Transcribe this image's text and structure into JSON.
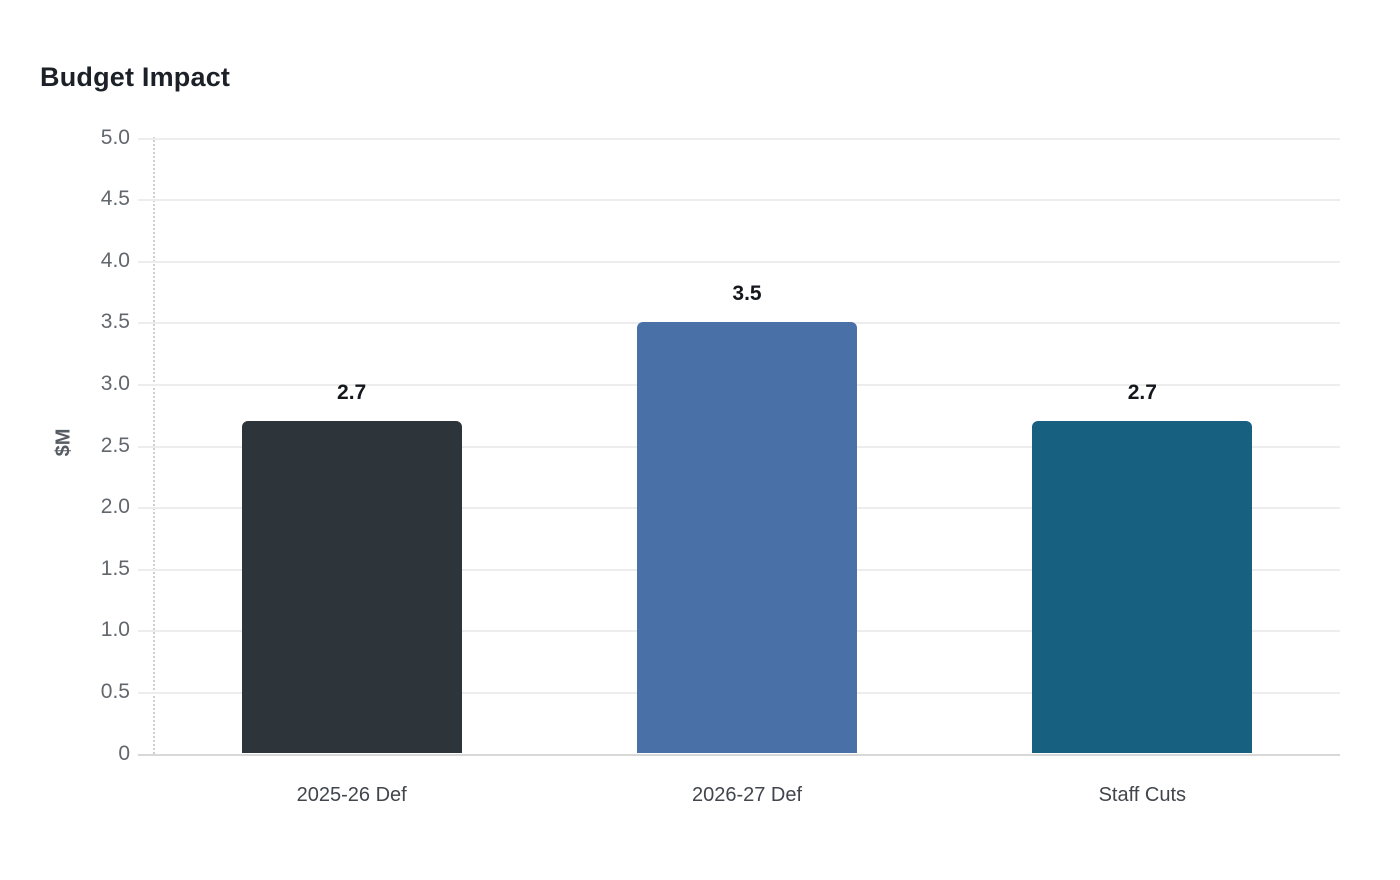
{
  "page": {
    "background_color": "#ffffff"
  },
  "chart_data": {
    "type": "bar",
    "title": "Budget Impact",
    "xlabel": "",
    "ylabel": "$M",
    "categories": [
      "2025-26 Def",
      "2026-27 Def",
      "Staff Cuts"
    ],
    "values": [
      2.7,
      3.5,
      2.7
    ],
    "value_labels": [
      "2.7",
      "3.5",
      "2.7"
    ],
    "bar_colors": [
      "#2d343a",
      "#4a70a8",
      "#17607f"
    ],
    "ylim": [
      0,
      5.0
    ],
    "ytick_labels": [
      "0",
      "0.5",
      "1.0",
      "1.5",
      "2.0",
      "2.5",
      "3.0",
      "3.5",
      "4.0",
      "4.5",
      "5.0"
    ],
    "grid": "horizontal",
    "legend_position": "none",
    "grid_color": "#ededed",
    "baseline_color": "#d8d8d8",
    "tick_label_color": "#62676d",
    "title_color": "#1c2127"
  }
}
